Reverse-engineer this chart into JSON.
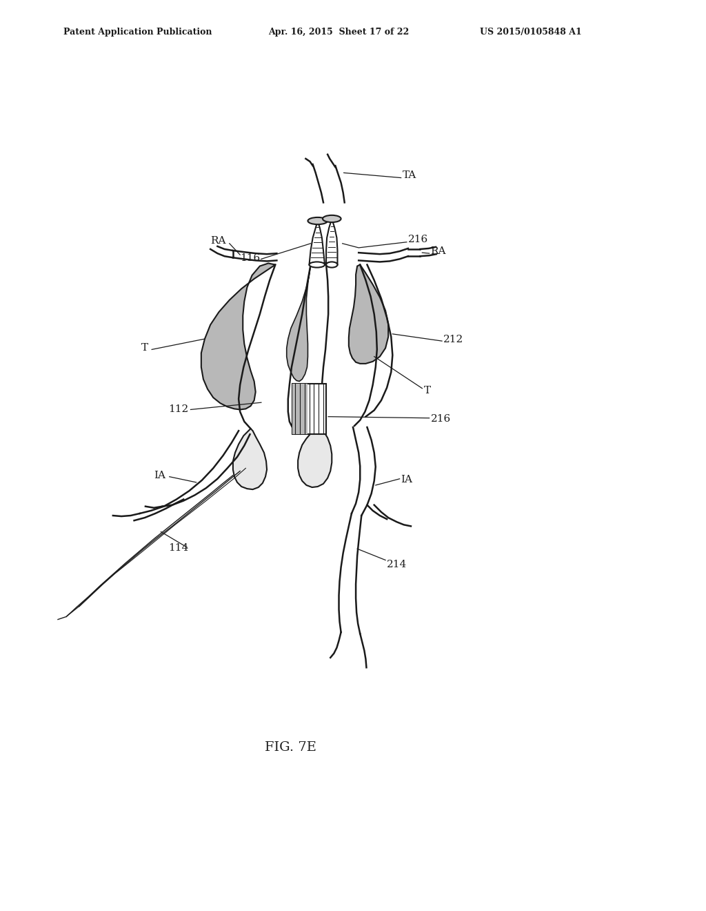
{
  "header_left": "Patent Application Publication",
  "header_center": "Apr. 16, 2015  Sheet 17 of 22",
  "header_right": "US 2015/0105848 A1",
  "figure_label": "FIG. 7E",
  "background_color": "#ffffff",
  "line_color": "#1a1a1a",
  "dot_color": "#b8b8b8",
  "hatch_color": "#d0d0d0",
  "lw_vessel": 1.8,
  "lw_thin": 1.2,
  "label_fontsize": 11,
  "header_fontsize": 9,
  "fig_label_fontsize": 14
}
